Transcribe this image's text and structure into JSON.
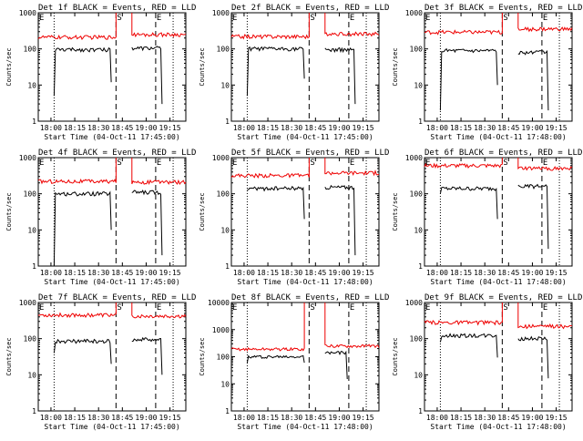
{
  "figure": {
    "colors": {
      "events": "#000000",
      "lld": "#ee0000",
      "axes": "#000000",
      "background": "#ffffff"
    }
  },
  "chart_data": [
    {
      "type": "line",
      "title": "Det 1f BLACK = Events, RED = LLD",
      "xlabel": "Start Time (04-Oct-11 17:45:00)",
      "ylabel": "Counts/sec",
      "y_scale": "log",
      "ylim": [
        1,
        1000
      ],
      "xlim": [
        "17:52",
        "19:25"
      ],
      "x_ticks": [
        "18:00",
        "18:15",
        "18:30",
        "18:45",
        "19:00",
        "19:15"
      ],
      "y_ticks": [
        "1",
        "10",
        "100",
        "1000"
      ],
      "markers": [
        {
          "label": "E",
          "x": "17:52",
          "style": "dotted"
        },
        {
          "label": "S",
          "x": "18:41",
          "style": "dashed"
        },
        {
          "label": "E",
          "x": "19:06",
          "style": "dashed"
        }
      ],
      "extra_dotted_lines": [
        "18:02",
        "19:17"
      ],
      "series": [
        {
          "name": "Events",
          "color": "#000000",
          "segments": [
            {
              "x0": "18:02",
              "x1": "18:38",
              "start": 5,
              "level": 95,
              "end": 12
            },
            {
              "x0": "18:51",
              "x1": "19:10",
              "level": 105,
              "end": 3
            }
          ]
        },
        {
          "name": "LLD",
          "color": "#ee0000",
          "segments": [
            {
              "x0": "17:52",
              "x1": "18:41",
              "level": 210,
              "spike": true
            },
            {
              "x0": "18:51",
              "x1": "19:25",
              "level": 250,
              "spike": true
            }
          ]
        }
      ]
    },
    {
      "type": "line",
      "title": "Det 2f BLACK = Events, RED = LLD",
      "xlabel": "Start Time (04-Oct-11 17:45:00)",
      "ylabel": "Counts/sec",
      "y_scale": "log",
      "ylim": [
        1,
        1000
      ],
      "xlim": [
        "17:52",
        "19:25"
      ],
      "x_ticks": [
        "18:00",
        "18:15",
        "18:30",
        "18:45",
        "19:00",
        "19:15"
      ],
      "y_ticks": [
        "1",
        "10",
        "100",
        "1000"
      ],
      "markers": [
        {
          "label": "E",
          "x": "17:52",
          "style": "dotted"
        },
        {
          "label": "S",
          "x": "18:41",
          "style": "dashed"
        },
        {
          "label": "E",
          "x": "19:06",
          "style": "dashed"
        }
      ],
      "extra_dotted_lines": [
        "18:02",
        "19:17"
      ],
      "series": [
        {
          "name": "Events",
          "color": "#000000",
          "segments": [
            {
              "x0": "18:02",
              "x1": "18:38",
              "start": 5,
              "level": 100,
              "end": 15
            },
            {
              "x0": "18:51",
              "x1": "19:10",
              "level": 95,
              "end": 3
            }
          ]
        },
        {
          "name": "LLD",
          "color": "#ee0000",
          "segments": [
            {
              "x0": "17:52",
              "x1": "18:41",
              "level": 220,
              "spike": true
            },
            {
              "x0": "18:51",
              "x1": "19:25",
              "level": 260,
              "spike": true
            }
          ]
        }
      ]
    },
    {
      "type": "line",
      "title": "Det 3f BLACK = Events, RED = LLD",
      "xlabel": "Start Time (04-Oct-11 17:48:00)",
      "ylabel": "Counts/sec",
      "y_scale": "log",
      "ylim": [
        1,
        1000
      ],
      "xlim": [
        "17:52",
        "19:25"
      ],
      "x_ticks": [
        "18:00",
        "18:15",
        "18:30",
        "18:45",
        "19:00",
        "19:15"
      ],
      "y_ticks": [
        "1",
        "10",
        "100",
        "1000"
      ],
      "markers": [
        {
          "label": "E",
          "x": "17:52",
          "style": "dotted"
        },
        {
          "label": "S",
          "x": "18:41",
          "style": "dashed"
        },
        {
          "label": "E",
          "x": "19:06",
          "style": "dashed"
        }
      ],
      "extra_dotted_lines": [
        "18:02",
        "19:17"
      ],
      "series": [
        {
          "name": "Events",
          "color": "#000000",
          "segments": [
            {
              "x0": "18:02",
              "x1": "18:38",
              "start": 2,
              "level": 90,
              "end": 10
            },
            {
              "x0": "18:51",
              "x1": "19:10",
              "level": 80,
              "end": 2
            }
          ]
        },
        {
          "name": "LLD",
          "color": "#ee0000",
          "segments": [
            {
              "x0": "17:52",
              "x1": "18:41",
              "level": 290,
              "spike": true
            },
            {
              "x0": "18:51",
              "x1": "19:25",
              "level": 350,
              "spike": true
            }
          ]
        }
      ]
    },
    {
      "type": "line",
      "title": "Det 4f BLACK = Events, RED = LLD",
      "xlabel": "Start Time (04-Oct-11 17:45:00)",
      "ylabel": "Counts/sec",
      "y_scale": "log",
      "ylim": [
        1,
        1000
      ],
      "xlim": [
        "17:52",
        "19:25"
      ],
      "x_ticks": [
        "18:00",
        "18:15",
        "18:30",
        "18:45",
        "19:00",
        "19:15"
      ],
      "y_ticks": [
        "1",
        "10",
        "100",
        "1000"
      ],
      "markers": [
        {
          "label": "E",
          "x": "17:52",
          "style": "dotted"
        },
        {
          "label": "S",
          "x": "18:41",
          "style": "dashed"
        },
        {
          "label": "E",
          "x": "19:06",
          "style": "dashed"
        }
      ],
      "extra_dotted_lines": [
        "18:02",
        "19:17"
      ],
      "series": [
        {
          "name": "Events",
          "color": "#000000",
          "segments": [
            {
              "x0": "18:02",
              "x1": "18:38",
              "start": 1,
              "level": 100,
              "end": 10
            },
            {
              "x0": "18:51",
              "x1": "19:10",
              "level": 110,
              "end": 2
            }
          ]
        },
        {
          "name": "LLD",
          "color": "#ee0000",
          "segments": [
            {
              "x0": "17:52",
              "x1": "18:41",
              "level": 220,
              "spike": true
            },
            {
              "x0": "18:51",
              "x1": "19:25",
              "level": 210,
              "spike": true
            }
          ]
        }
      ]
    },
    {
      "type": "line",
      "title": "Det 5f BLACK = Events, RED = LLD",
      "xlabel": "Start Time (04-Oct-11 17:48:00)",
      "ylabel": "Counts/sec",
      "y_scale": "log",
      "ylim": [
        1,
        1000
      ],
      "xlim": [
        "17:52",
        "19:25"
      ],
      "x_ticks": [
        "18:00",
        "18:15",
        "18:30",
        "18:45",
        "19:00",
        "19:15"
      ],
      "y_ticks": [
        "1",
        "10",
        "100",
        "1000"
      ],
      "markers": [
        {
          "label": "E",
          "x": "17:52",
          "style": "dotted"
        },
        {
          "label": "S",
          "x": "18:41",
          "style": "dashed"
        },
        {
          "label": "E",
          "x": "19:06",
          "style": "dashed"
        }
      ],
      "extra_dotted_lines": [
        "18:02",
        "19:17"
      ],
      "series": [
        {
          "name": "Events",
          "color": "#000000",
          "segments": [
            {
              "x0": "18:02",
              "x1": "18:38",
              "start": 130,
              "level": 140,
              "end": 20
            },
            {
              "x0": "18:51",
              "x1": "19:10",
              "level": 150,
              "end": 2
            }
          ]
        },
        {
          "name": "LLD",
          "color": "#ee0000",
          "segments": [
            {
              "x0": "17:52",
              "x1": "18:41",
              "level": 320,
              "spike": true
            },
            {
              "x0": "18:51",
              "x1": "19:25",
              "level": 380,
              "spike": true
            }
          ]
        }
      ]
    },
    {
      "type": "line",
      "title": "Det 6f BLACK = Events, RED = LLD",
      "xlabel": "Start Time (04-Oct-11 17:48:00)",
      "ylabel": "Counts/sec",
      "y_scale": "log",
      "ylim": [
        1,
        1000
      ],
      "xlim": [
        "17:52",
        "19:25"
      ],
      "x_ticks": [
        "18:00",
        "18:15",
        "18:30",
        "18:45",
        "19:00",
        "19:15"
      ],
      "y_ticks": [
        "1",
        "10",
        "100",
        "1000"
      ],
      "markers": [
        {
          "label": "E",
          "x": "17:52",
          "style": "dotted"
        },
        {
          "label": "S",
          "x": "18:41",
          "style": "dashed"
        },
        {
          "label": "E",
          "x": "19:06",
          "style": "dashed"
        }
      ],
      "extra_dotted_lines": [
        "18:02",
        "19:17"
      ],
      "series": [
        {
          "name": "Events",
          "color": "#000000",
          "segments": [
            {
              "x0": "18:02",
              "x1": "18:38",
              "start": 100,
              "level": 140,
              "end": 20
            },
            {
              "x0": "18:51",
              "x1": "19:10",
              "level": 160,
              "end": 3
            }
          ]
        },
        {
          "name": "LLD",
          "color": "#ee0000",
          "segments": [
            {
              "x0": "17:52",
              "x1": "18:41",
              "level": 600,
              "spike": true
            },
            {
              "x0": "18:51",
              "x1": "19:25",
              "level": 500,
              "spike": true
            }
          ]
        }
      ]
    },
    {
      "type": "line",
      "title": "Det 7f BLACK = Events, RED = LLD",
      "xlabel": "Start Time (04-Oct-11 17:45:00)",
      "ylabel": "Counts/sec",
      "y_scale": "log",
      "ylim": [
        1,
        1000
      ],
      "xlim": [
        "17:52",
        "19:25"
      ],
      "x_ticks": [
        "18:00",
        "18:15",
        "18:30",
        "18:45",
        "19:00",
        "19:15"
      ],
      "y_ticks": [
        "1",
        "10",
        "100",
        "1000"
      ],
      "markers": [
        {
          "label": "E",
          "x": "17:52",
          "style": "dotted"
        },
        {
          "label": "S",
          "x": "18:41",
          "style": "dashed"
        },
        {
          "label": "E",
          "x": "19:06",
          "style": "dashed"
        }
      ],
      "extra_dotted_lines": [
        "18:02",
        "19:17"
      ],
      "series": [
        {
          "name": "Events",
          "color": "#000000",
          "segments": [
            {
              "x0": "18:02",
              "x1": "18:38",
              "start": 40,
              "level": 85,
              "end": 20
            },
            {
              "x0": "18:51",
              "x1": "19:10",
              "level": 95,
              "end": 10
            }
          ]
        },
        {
          "name": "LLD",
          "color": "#ee0000",
          "segments": [
            {
              "x0": "17:52",
              "x1": "18:41",
              "level": 450,
              "spike": true
            },
            {
              "x0": "18:51",
              "x1": "19:25",
              "level": 420,
              "spike": true
            }
          ]
        }
      ]
    },
    {
      "type": "line",
      "title": "Det 8f BLACK = Events, RED = LLD",
      "xlabel": "Start Time (04-Oct-11 17:48:00)",
      "ylabel": "Counts/sec",
      "y_scale": "log",
      "ylim": [
        1,
        10000
      ],
      "xlim": [
        "17:52",
        "19:25"
      ],
      "x_ticks": [
        "18:00",
        "18:15",
        "18:30",
        "18:45",
        "19:00",
        "19:15"
      ],
      "y_ticks": [
        "1",
        "10",
        "100",
        "1000",
        "10000"
      ],
      "markers": [
        {
          "label": "E",
          "x": "17:52",
          "style": "dotted"
        },
        {
          "label": "S",
          "x": "18:41",
          "style": "dashed"
        },
        {
          "label": "E",
          "x": "19:06",
          "style": "dashed"
        }
      ],
      "extra_dotted_lines": [
        "18:02",
        "19:17"
      ],
      "series": [
        {
          "name": "Events",
          "color": "#000000",
          "segments": [
            {
              "x0": "18:02",
              "x1": "18:38",
              "start": 60,
              "level": 100,
              "end": 60
            },
            {
              "x0": "18:51",
              "x1": "19:05",
              "level": 140,
              "end": 15
            }
          ]
        },
        {
          "name": "LLD",
          "color": "#ee0000",
          "segments": [
            {
              "x0": "17:52",
              "x1": "18:38",
              "level": 190,
              "spike": true
            },
            {
              "x0": "18:51",
              "x1": "19:25",
              "level": 250,
              "spike": true
            }
          ]
        }
      ]
    },
    {
      "type": "line",
      "title": "Det 9f BLACK = Events, RED = LLD",
      "xlabel": "Start Time (04-Oct-11 17:48:00)",
      "ylabel": "Counts/sec",
      "y_scale": "log",
      "ylim": [
        1,
        1000
      ],
      "xlim": [
        "17:52",
        "19:25"
      ],
      "x_ticks": [
        "18:00",
        "18:15",
        "18:30",
        "18:45",
        "19:00",
        "19:15"
      ],
      "y_ticks": [
        "1",
        "10",
        "100",
        "1000"
      ],
      "markers": [
        {
          "label": "E",
          "x": "17:52",
          "style": "dotted"
        },
        {
          "label": "S",
          "x": "18:41",
          "style": "dashed"
        },
        {
          "label": "E",
          "x": "19:06",
          "style": "dashed"
        }
      ],
      "extra_dotted_lines": [
        "18:02",
        "19:17"
      ],
      "series": [
        {
          "name": "Events",
          "color": "#000000",
          "segments": [
            {
              "x0": "18:02",
              "x1": "18:38",
              "start": 80,
              "level": 120,
              "end": 30
            },
            {
              "x0": "18:51",
              "x1": "19:10",
              "level": 100,
              "end": 8
            }
          ]
        },
        {
          "name": "LLD",
          "color": "#ee0000",
          "segments": [
            {
              "x0": "17:52",
              "x1": "18:41",
              "level": 280,
              "spike": true
            },
            {
              "x0": "18:51",
              "x1": "19:25",
              "level": 220,
              "spike": true
            }
          ]
        }
      ]
    }
  ]
}
